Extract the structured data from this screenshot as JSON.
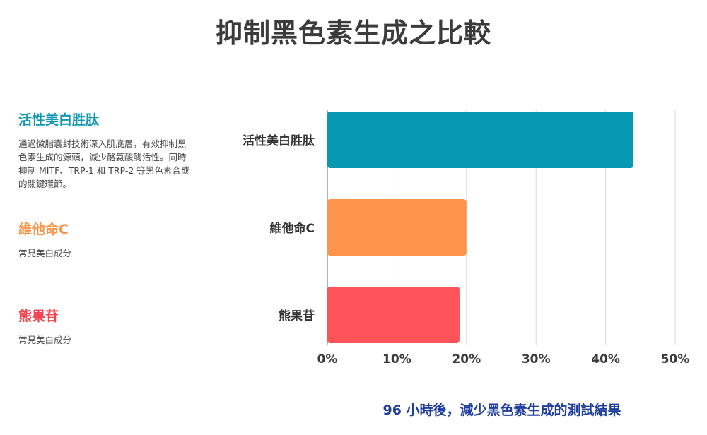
{
  "title": "抑制黑色素生成之比較",
  "sidebar": {
    "items": [
      {
        "title": "活性美白胜肽",
        "color": "#0f98b3",
        "text": "通過微脂囊封技術深入肌底層，有效抑制黑色素生成的源頭，減少酪氨酸酶活性。同時抑制 MITF、TRP-1 和 TRP-2 等黑色素合成的關鍵環節。"
      },
      {
        "title": "維他命C",
        "color": "#f79548",
        "text": "常見美白成分"
      },
      {
        "title": "熊果苷",
        "color": "#f2404c",
        "text": "常見美白成分"
      }
    ]
  },
  "chart_data": {
    "type": "bar",
    "orientation": "horizontal",
    "categories": [
      "活性美白胜肽",
      "維他命C",
      "熊果苷"
    ],
    "values": [
      44,
      20,
      19
    ],
    "colors": [
      "#0798b2",
      "#fd944c",
      "#fe5459"
    ],
    "xlim": [
      0,
      50
    ],
    "xticks": [
      0,
      10,
      20,
      30,
      40,
      50
    ],
    "tick_format": "{v}%",
    "grid": true,
    "caption": "96 小時後，減少黑色素生成的測試結果"
  }
}
